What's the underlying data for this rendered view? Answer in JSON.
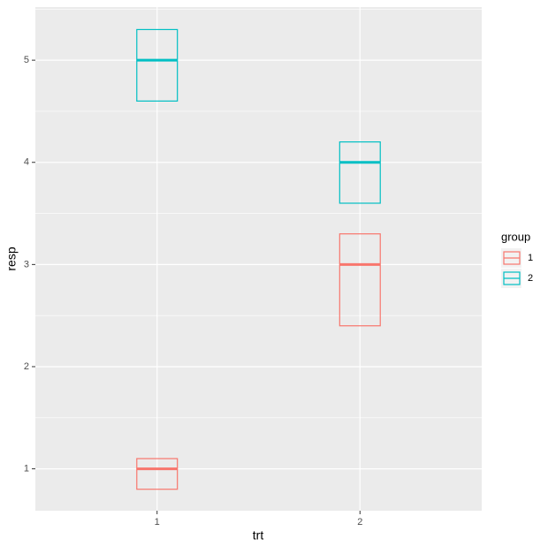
{
  "chart_data": {
    "type": "crossbar",
    "x_label": "trt",
    "y_label": "resp",
    "categories": [
      "1",
      "2"
    ],
    "legend_title": "group",
    "legend_position": "right",
    "series": [
      {
        "name": "1",
        "color": "#F8766D",
        "values": [
          1,
          3
        ],
        "lower": [
          0.8,
          2.4
        ],
        "upper": [
          1.1,
          3.3
        ]
      },
      {
        "name": "2",
        "color": "#00BFC4",
        "values": [
          5,
          4
        ],
        "lower": [
          4.6,
          3.6
        ],
        "upper": [
          5.3,
          4.2
        ]
      }
    ],
    "ylim": [
      0.59,
      5.52
    ],
    "yticks": [
      1,
      2,
      3,
      4,
      5
    ],
    "grid": true,
    "minor_grid": true
  }
}
